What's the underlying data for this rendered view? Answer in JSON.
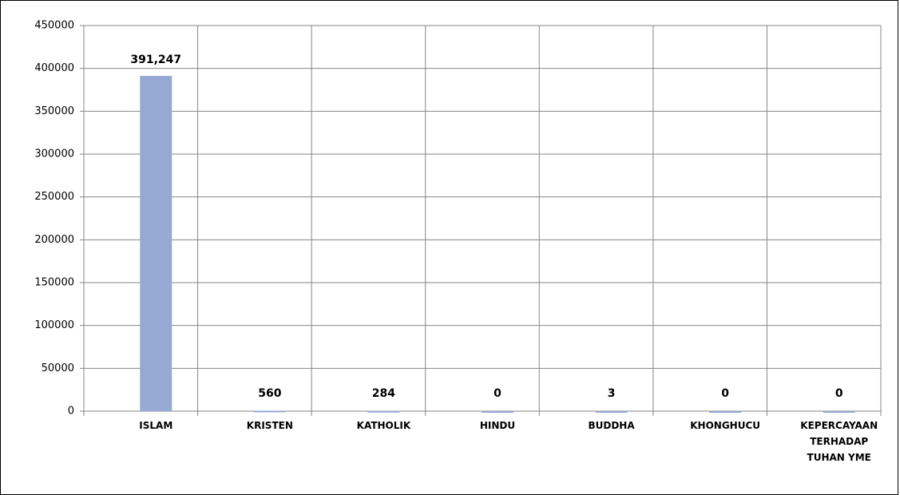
{
  "chart_data": {
    "type": "bar",
    "categories": [
      "ISLAM",
      "KRISTEN",
      "KATHOLIK",
      "HINDU",
      "BUDDHA",
      "KHONGHUCU",
      "KEPERCAYAAN TERHADAP TUHAN YME"
    ],
    "values": [
      391247,
      560,
      284,
      0,
      3,
      0,
      0
    ],
    "value_labels": [
      "391,247",
      "560",
      "284",
      "0",
      "3",
      "0",
      "0"
    ],
    "color": "#95a9d3",
    "ylim": [
      0,
      450000
    ],
    "yticks": [
      0,
      50000,
      100000,
      150000,
      200000,
      250000,
      300000,
      350000,
      400000,
      450000
    ],
    "grid": true
  }
}
